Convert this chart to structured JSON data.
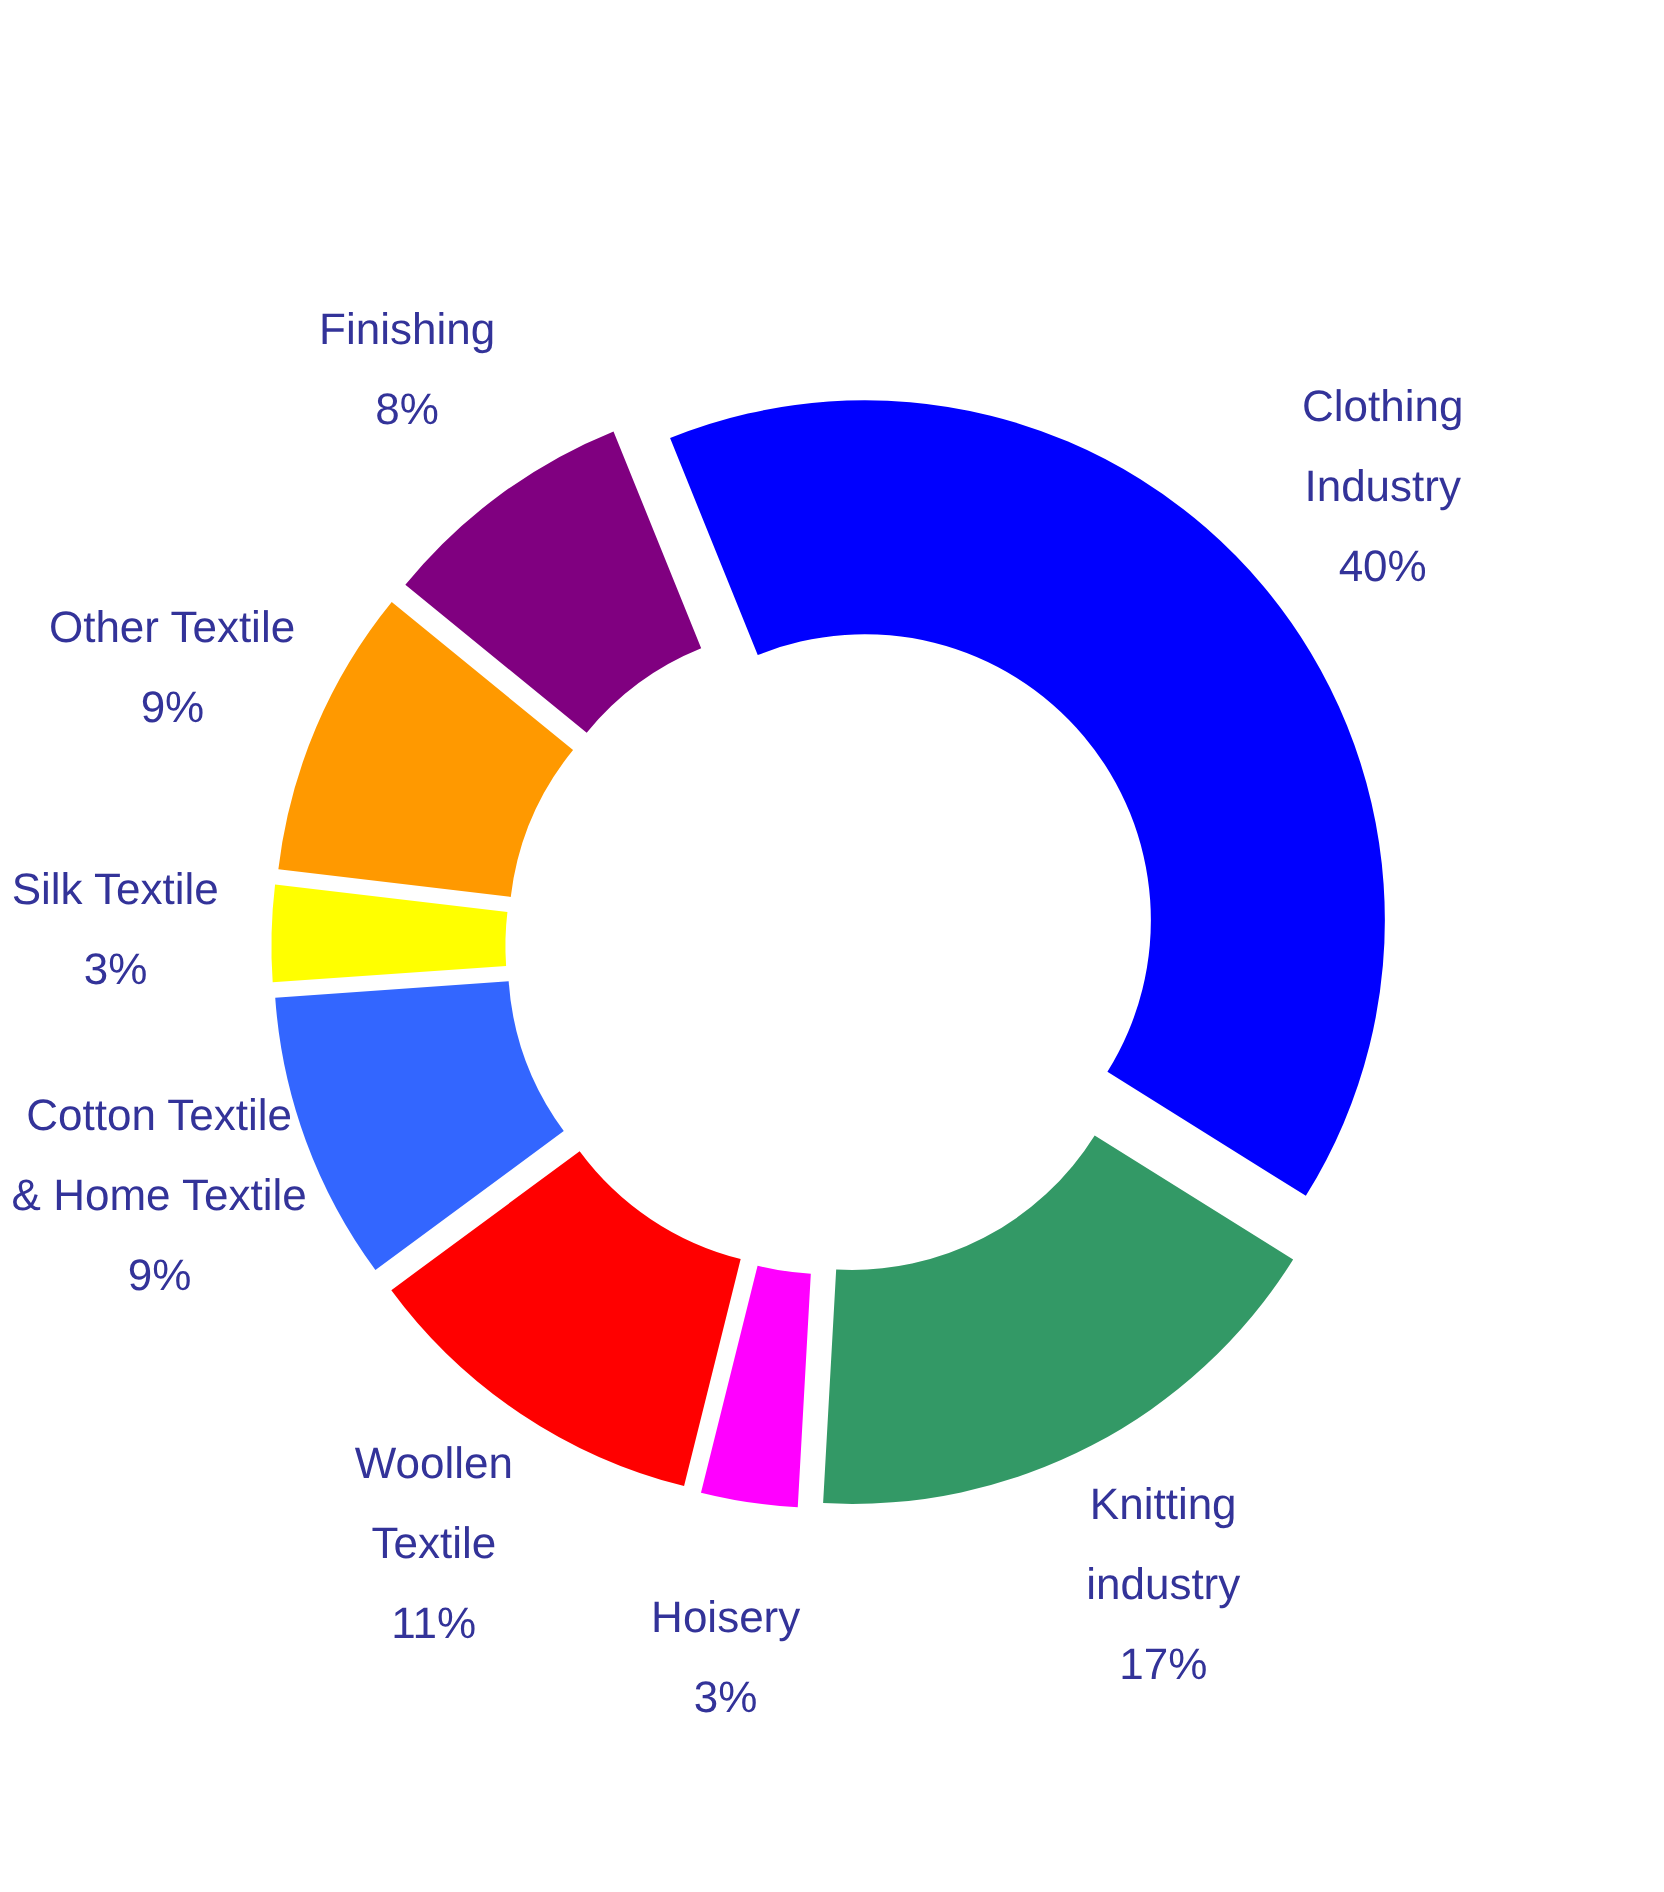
{
  "chart_data": {
    "type": "donut",
    "categories": [
      "Clothing\nIndustry",
      "Knitting\nindustry",
      "Hoisery",
      "Woollen\nTextile",
      "Cotton Textile\n& Home Textile",
      "Silk Textile",
      "Other Textile",
      "Finishing"
    ],
    "values": [
      40,
      17,
      3,
      11,
      9,
      3,
      9,
      8
    ],
    "value_labels": [
      "40%",
      "17%",
      "3%",
      "11%",
      "9%",
      "3%",
      "9%",
      "8%"
    ],
    "colors": [
      "#0000ff",
      "#339966",
      "#ff00ff",
      "#ff0000",
      "#3366ff",
      "#ffff00",
      "#ff9900",
      "#800080"
    ],
    "legend": false
  }
}
